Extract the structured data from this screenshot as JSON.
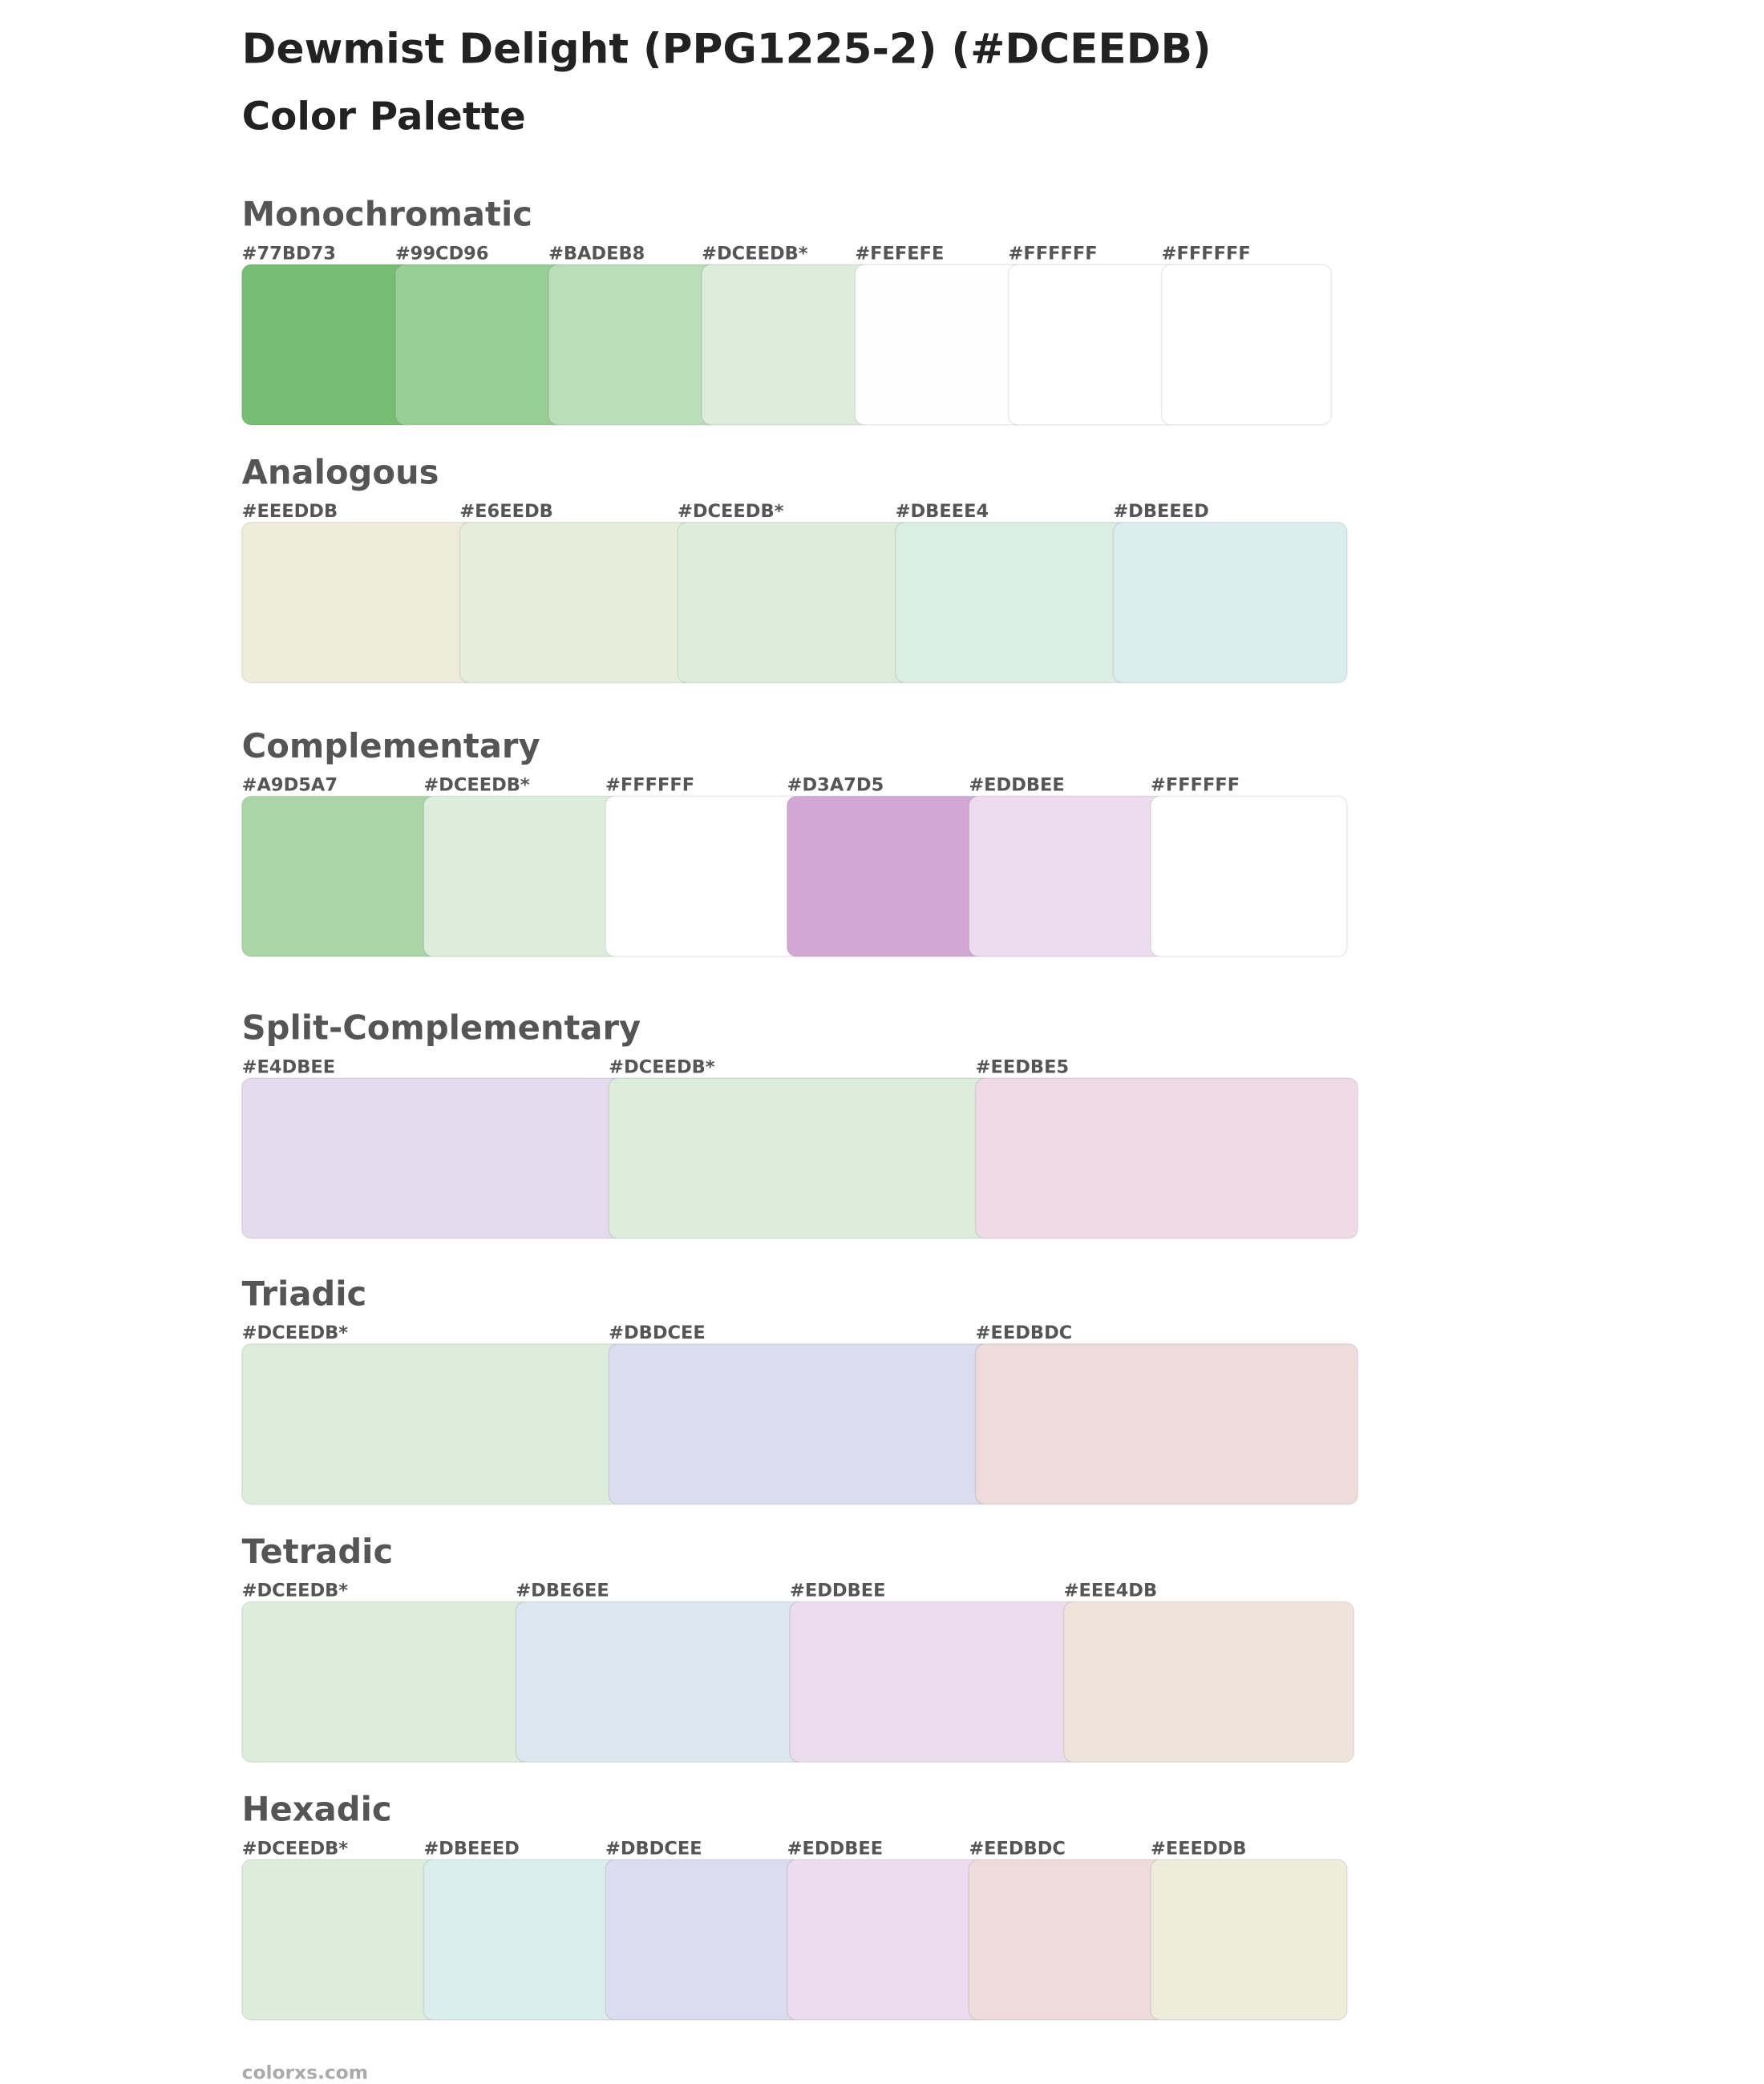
{
  "header": {
    "title": "Dewmist Delight (PPG1225-2) (#DCEEDB)",
    "subtitle": "Color Palette"
  },
  "sections": [
    {
      "title": "Monochromatic",
      "swatches": [
        {
          "label": "#77BD73",
          "color": "#77BD73"
        },
        {
          "label": "#99CD96",
          "color": "#99CD96"
        },
        {
          "label": "#BADEB8",
          "color": "#BADEB8"
        },
        {
          "label": "#DCEEDB*",
          "color": "#DCEEDB"
        },
        {
          "label": "#FEFEFE",
          "color": "#FEFEFE"
        },
        {
          "label": "#FFFFFF",
          "color": "#FFFFFF"
        },
        {
          "label": "#FFFFFF",
          "color": "#FFFFFF"
        }
      ]
    },
    {
      "title": "Analogous",
      "swatches": [
        {
          "label": "#EEEDDB",
          "color": "#EEEDDB"
        },
        {
          "label": "#E6EEDB",
          "color": "#E6EEDB"
        },
        {
          "label": "#DCEEDB*",
          "color": "#DCEEDB"
        },
        {
          "label": "#DBEEE4",
          "color": "#DBEEE4"
        },
        {
          "label": "#DBEEED",
          "color": "#DBEEED"
        }
      ]
    },
    {
      "title": "Complementary",
      "swatches": [
        {
          "label": "#A9D5A7",
          "color": "#A9D5A7"
        },
        {
          "label": "#DCEEDB*",
          "color": "#DCEEDB"
        },
        {
          "label": "#FFFFFF",
          "color": "#FFFFFF"
        },
        {
          "label": "#D3A7D5",
          "color": "#D3A7D5"
        },
        {
          "label": "#EDDBEE",
          "color": "#EDDBEE"
        },
        {
          "label": "#FFFFFF",
          "color": "#FFFFFF"
        }
      ]
    },
    {
      "title": "Split-Complementary",
      "swatches": [
        {
          "label": "#E4DBEE",
          "color": "#E4DBEE"
        },
        {
          "label": "#DCEEDB*",
          "color": "#DCEEDB"
        },
        {
          "label": "#EEDBE5",
          "color": "#EEDBE5"
        }
      ]
    },
    {
      "title": "Triadic",
      "swatches": [
        {
          "label": "#DCEEDB*",
          "color": "#DCEEDB"
        },
        {
          "label": "#DBDCEE",
          "color": "#DBDCEE"
        },
        {
          "label": "#EEDBDC",
          "color": "#EEDBDC"
        }
      ]
    },
    {
      "title": "Tetradic",
      "swatches": [
        {
          "label": "#DCEEDB*",
          "color": "#DCEEDB"
        },
        {
          "label": "#DBE6EE",
          "color": "#DBE6EE"
        },
        {
          "label": "#EDDBEE",
          "color": "#EDDBEE"
        },
        {
          "label": "#EEE4DB",
          "color": "#EEE4DB"
        }
      ]
    },
    {
      "title": "Hexadic",
      "swatches": [
        {
          "label": "#DCEEDB*",
          "color": "#DCEEDB"
        },
        {
          "label": "#DBEEED",
          "color": "#DBEEED"
        },
        {
          "label": "#DBDCEE",
          "color": "#DBDCEE"
        },
        {
          "label": "#EDDBEE",
          "color": "#EDDBEE"
        },
        {
          "label": "#EEDBDC",
          "color": "#EEDBDC"
        },
        {
          "label": "#EEEDDB",
          "color": "#EEEDDB"
        }
      ]
    }
  ],
  "footer": {
    "text": "colorxs.com"
  }
}
